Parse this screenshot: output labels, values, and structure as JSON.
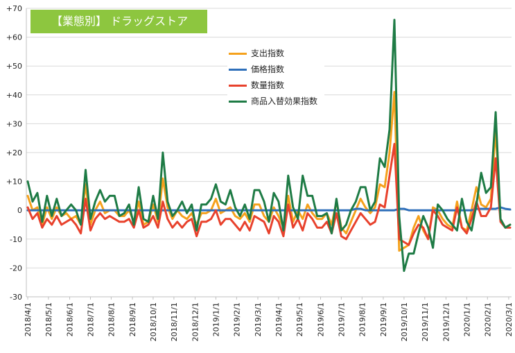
{
  "chart_data": {
    "type": "line",
    "title": "【業態別】 ドラッグストア",
    "title_bg": "#8dc63f",
    "ylim": [
      -30,
      70
    ],
    "yticks": [
      "-30",
      "-20",
      "-10",
      "0",
      "+10",
      "+20",
      "+30",
      "+40",
      "+50",
      "+60",
      "+70"
    ],
    "ytick_values": [
      -30,
      -20,
      -10,
      0,
      10,
      20,
      30,
      40,
      50,
      60,
      70
    ],
    "x_count": 101,
    "x_ticks": [
      {
        "label": "2018/4/1",
        "index": 0
      },
      {
        "label": "2018/5/1",
        "index": 4.3
      },
      {
        "label": "2018/6/1",
        "index": 8.7
      },
      {
        "label": "2018/7/1",
        "index": 13
      },
      {
        "label": "2018/8/1",
        "index": 17.3
      },
      {
        "label": "2018/9/1",
        "index": 21.7
      },
      {
        "label": "2018/10/1",
        "index": 26
      },
      {
        "label": "2018/11/1",
        "index": 30.3
      },
      {
        "label": "2018/12/1",
        "index": 34.7
      },
      {
        "label": "2019/1/1",
        "index": 39
      },
      {
        "label": "2019/2/1",
        "index": 43.3
      },
      {
        "label": "2019/3/1",
        "index": 47.7
      },
      {
        "label": "2019/4/1",
        "index": 52
      },
      {
        "label": "2019/5/1",
        "index": 56.3
      },
      {
        "label": "2019/6/1",
        "index": 60.7
      },
      {
        "label": "2019/7/1",
        "index": 65
      },
      {
        "label": "2019/8/1",
        "index": 69.3
      },
      {
        "label": "2019/9/1",
        "index": 73.7
      },
      {
        "label": "2019/10/1",
        "index": 78
      },
      {
        "label": "2019/11/1",
        "index": 82.3
      },
      {
        "label": "2019/12/1",
        "index": 86.7
      },
      {
        "label": "2020/1/1",
        "index": 91
      },
      {
        "label": "2020/2/1",
        "index": 95.3
      },
      {
        "label": "2020/3/1",
        "index": 99.7
      }
    ],
    "grid": "horizontal",
    "legend_position": "top-center",
    "series": [
      {
        "name": "支出指数",
        "color": "#f5a11c",
        "values": [
          5,
          0,
          1,
          -5,
          1,
          -3,
          1,
          -2,
          -1,
          -3,
          -2,
          -5,
          9,
          -5,
          0,
          3,
          -1,
          0,
          0,
          -2,
          -2,
          0,
          -4,
          3,
          -5,
          -4,
          2,
          -4,
          11,
          1,
          -3,
          0,
          -2,
          -3,
          -1,
          -5,
          -1,
          -1,
          0,
          4,
          -1,
          0,
          1,
          -2,
          -3,
          -1,
          -4,
          2,
          2,
          -2,
          -4,
          1,
          -2,
          -6,
          5,
          -4,
          0,
          -3,
          2,
          -1,
          -3,
          -3,
          -1,
          -5,
          3,
          -6,
          -8,
          -4,
          0,
          4,
          1,
          -1,
          1,
          9,
          8,
          20,
          41,
          -14,
          -13,
          -12,
          -6,
          -2,
          -7,
          -10,
          1,
          0,
          -3,
          -5,
          -6,
          3,
          -6,
          -7,
          0,
          8,
          2,
          1,
          4,
          28,
          -3,
          -6,
          -5
        ]
      },
      {
        "name": "価格指数",
        "color": "#2e6fba",
        "values": [
          0,
          0,
          0,
          0,
          0,
          0,
          0,
          0,
          0,
          0,
          0,
          0,
          0,
          0,
          0,
          0,
          0,
          0,
          0,
          0,
          0,
          0,
          0,
          0,
          0,
          0,
          0,
          0,
          0,
          0,
          0,
          0,
          0,
          0,
          0,
          0,
          0,
          0,
          0,
          0,
          0,
          0,
          0,
          0,
          0,
          0,
          0,
          0,
          0,
          0,
          0,
          0,
          0,
          0,
          0,
          0,
          0,
          0,
          0,
          0,
          0,
          0,
          0,
          0,
          0,
          0,
          0,
          0,
          0.5,
          0.5,
          0,
          0,
          0,
          0,
          0,
          0,
          0,
          0.5,
          0.5,
          0,
          0,
          0,
          0,
          0,
          0,
          0,
          0,
          0,
          0,
          0,
          0,
          0,
          0,
          0.5,
          0.5,
          0.5,
          0.5,
          0.5,
          1,
          0.5,
          0.3
        ]
      },
      {
        "name": "数量指数",
        "color": "#e8412c",
        "values": [
          1,
          -3,
          -1,
          -6,
          -3,
          -5,
          -2,
          -5,
          -4,
          -3,
          -5,
          -8,
          4,
          -7,
          -3,
          -1,
          -3,
          -2,
          -3,
          -4,
          -4,
          -3,
          -6,
          0,
          -6,
          -5,
          -2,
          -6,
          3,
          -3,
          -6,
          -4,
          -6,
          -4,
          -3,
          -9,
          -4,
          -4,
          -3,
          0,
          -5,
          -3,
          -3,
          -5,
          -7,
          -4,
          -7,
          -2,
          -3,
          -4,
          -8,
          -2,
          -4,
          -9,
          2,
          -6,
          -3,
          -7,
          -1,
          -3,
          -6,
          -6,
          -4,
          -8,
          -1,
          -9,
          -10,
          -7,
          -4,
          -1,
          -3,
          -5,
          -4,
          2,
          1,
          12,
          23,
          -10,
          -11,
          -12,
          -8,
          -5,
          -6,
          -10,
          0,
          -2,
          -5,
          -6,
          -7,
          1,
          -6,
          -8,
          -3,
          3,
          -2,
          -2,
          1,
          18,
          -4,
          -6,
          -6
        ]
      },
      {
        "name": "商品入替効果指数",
        "color": "#1e7b45",
        "values": [
          10,
          3,
          6,
          -4,
          5,
          -2,
          4,
          -2,
          0,
          2,
          0,
          -5,
          14,
          -3,
          3,
          7,
          3,
          5,
          5,
          -2,
          -1,
          2,
          -5,
          8,
          -3,
          -4,
          5,
          -3,
          20,
          3,
          -2,
          0,
          3,
          -1,
          2,
          -7,
          2,
          2,
          4,
          9,
          3,
          2,
          7,
          1,
          -2,
          2,
          -3,
          7,
          7,
          3,
          -4,
          6,
          3,
          -7,
          12,
          1,
          -3,
          12,
          5,
          5,
          -2,
          -2,
          -1,
          -8,
          4,
          -7,
          -5,
          0,
          3,
          8,
          8,
          0,
          3,
          18,
          15,
          28,
          66,
          -2,
          -21,
          -15,
          -15,
          -8,
          -2,
          -6,
          -13,
          2,
          0,
          -3,
          -5,
          -7,
          4,
          -4,
          -7,
          2,
          13,
          6,
          8,
          34,
          -3,
          -6,
          -5
        ]
      }
    ]
  }
}
